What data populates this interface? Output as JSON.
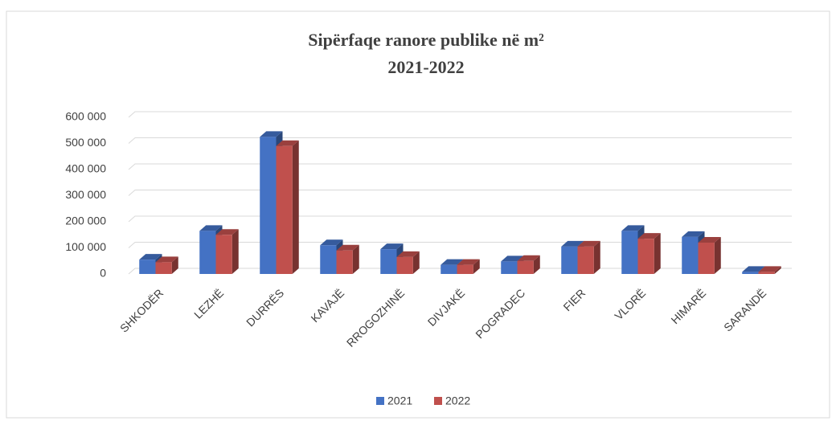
{
  "chart_data": {
    "type": "bar3d",
    "title": "Sipërfaqe ranore  publike në m²",
    "subtitle": "2021-2022",
    "categories": [
      "SHKODËR",
      "LEZHË",
      "DURRËS",
      "KAVAJË",
      "RROGOZHINË",
      "DIVJAKË",
      "POGRADEC",
      "FIER",
      "VLORË",
      "HIMARË",
      "SARANDË"
    ],
    "series": [
      {
        "name": "2021",
        "color": "#4472c4",
        "values": [
          55000,
          165000,
          525000,
          110000,
          95000,
          35000,
          48000,
          105000,
          165000,
          142000,
          8000
        ]
      },
      {
        "name": "2022",
        "color": "#c0504d",
        "values": [
          45000,
          150000,
          490000,
          90000,
          65000,
          35000,
          50000,
          105000,
          135000,
          120000,
          8000
        ]
      }
    ],
    "ylim": [
      0,
      600000
    ],
    "yticks": [
      {
        "value": 0,
        "label": "0"
      },
      {
        "value": 100000,
        "label": "100 000"
      },
      {
        "value": 200000,
        "label": "200 000"
      },
      {
        "value": 300000,
        "label": "300 000"
      },
      {
        "value": 400000,
        "label": "400 000"
      },
      {
        "value": 500000,
        "label": "500 000"
      },
      {
        "value": 600000,
        "label": "600 000"
      }
    ],
    "grid": true,
    "legend": "bottom"
  }
}
